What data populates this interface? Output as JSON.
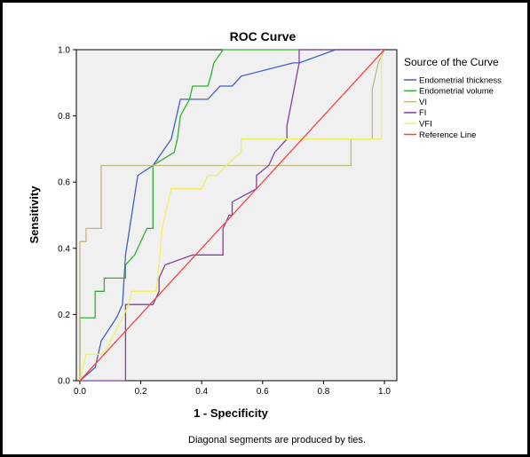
{
  "chart_data": {
    "type": "line",
    "title": "ROC Curve",
    "xlabel": "1 - Specificity",
    "ylabel": "Sensitivity",
    "xlim": [
      0,
      1
    ],
    "ylim": [
      0,
      1
    ],
    "xticks": [
      "0.0",
      "0.2",
      "0.4",
      "0.6",
      "0.8",
      "1.0"
    ],
    "yticks": [
      "0.0",
      "0.2",
      "0.4",
      "0.6",
      "0.8",
      "1.0"
    ],
    "grid": false,
    "legend": {
      "title": "Source of the Curve",
      "placement": "right"
    },
    "footnote": "Diagonal segments are produced by ties.",
    "series": [
      {
        "name": "Endometrial thickness",
        "color": "#4060c0",
        "x": [
          0.0,
          0.05,
          0.07,
          0.12,
          0.14,
          0.15,
          0.19,
          0.24,
          0.3,
          0.33,
          0.34,
          0.35,
          0.38,
          0.42,
          0.46,
          0.5,
          0.53,
          0.7,
          0.72,
          0.84,
          1.0
        ],
        "y": [
          0.0,
          0.04,
          0.12,
          0.19,
          0.23,
          0.38,
          0.62,
          0.65,
          0.73,
          0.85,
          0.85,
          0.85,
          0.85,
          0.85,
          0.89,
          0.89,
          0.92,
          0.96,
          0.96,
          1.0,
          1.0
        ]
      },
      {
        "name": "Endometrial volume",
        "color": "#30b030",
        "x": [
          0.0,
          0.0,
          0.05,
          0.05,
          0.08,
          0.08,
          0.15,
          0.15,
          0.18,
          0.2,
          0.22,
          0.24,
          0.24,
          0.31,
          0.32,
          0.33,
          0.36,
          0.37,
          0.38,
          0.42,
          0.43,
          0.44,
          0.47,
          0.55,
          1.0
        ],
        "y": [
          0.0,
          0.19,
          0.19,
          0.27,
          0.27,
          0.31,
          0.31,
          0.35,
          0.38,
          0.42,
          0.46,
          0.46,
          0.65,
          0.69,
          0.73,
          0.8,
          0.85,
          0.89,
          0.89,
          0.89,
          0.92,
          0.96,
          1.0,
          1.0,
          1.0
        ]
      },
      {
        "name": "VI",
        "color": "#c0b880",
        "x": [
          0.0,
          0.0,
          0.02,
          0.02,
          0.07,
          0.07,
          0.47,
          0.89,
          0.89,
          0.96,
          0.96,
          0.98,
          1.0
        ],
        "y": [
          0.0,
          0.42,
          0.42,
          0.46,
          0.46,
          0.65,
          0.65,
          0.65,
          0.73,
          0.73,
          0.88,
          0.96,
          1.0
        ]
      },
      {
        "name": "FI",
        "color": "#8040a0",
        "x": [
          0.0,
          0.15,
          0.15,
          0.24,
          0.26,
          0.26,
          0.28,
          0.28,
          0.37,
          0.37,
          0.47,
          0.47,
          0.49,
          0.5,
          0.5,
          0.58,
          0.58,
          0.62,
          0.64,
          0.68,
          0.68,
          0.72,
          0.72,
          1.0
        ],
        "y": [
          0.0,
          0.0,
          0.23,
          0.23,
          0.27,
          0.31,
          0.35,
          0.35,
          0.38,
          0.38,
          0.38,
          0.46,
          0.5,
          0.5,
          0.54,
          0.58,
          0.62,
          0.65,
          0.69,
          0.73,
          0.77,
          0.96,
          1.0,
          1.0
        ]
      },
      {
        "name": "VFI",
        "color": "#f0f060",
        "x": [
          0.0,
          0.02,
          0.08,
          0.1,
          0.14,
          0.16,
          0.17,
          0.2,
          0.25,
          0.26,
          0.27,
          0.28,
          0.3,
          0.4,
          0.42,
          0.45,
          0.48,
          0.53,
          0.53,
          0.85,
          0.99,
          0.99
        ],
        "y": [
          0.0,
          0.08,
          0.08,
          0.12,
          0.19,
          0.23,
          0.27,
          0.27,
          0.27,
          0.35,
          0.46,
          0.5,
          0.58,
          0.58,
          0.62,
          0.62,
          0.65,
          0.69,
          0.73,
          0.73,
          0.73,
          1.0
        ]
      },
      {
        "name": "Reference Line",
        "color": "#ff4040",
        "x": [
          0.0,
          1.0
        ],
        "y": [
          0.0,
          1.0
        ]
      }
    ]
  }
}
